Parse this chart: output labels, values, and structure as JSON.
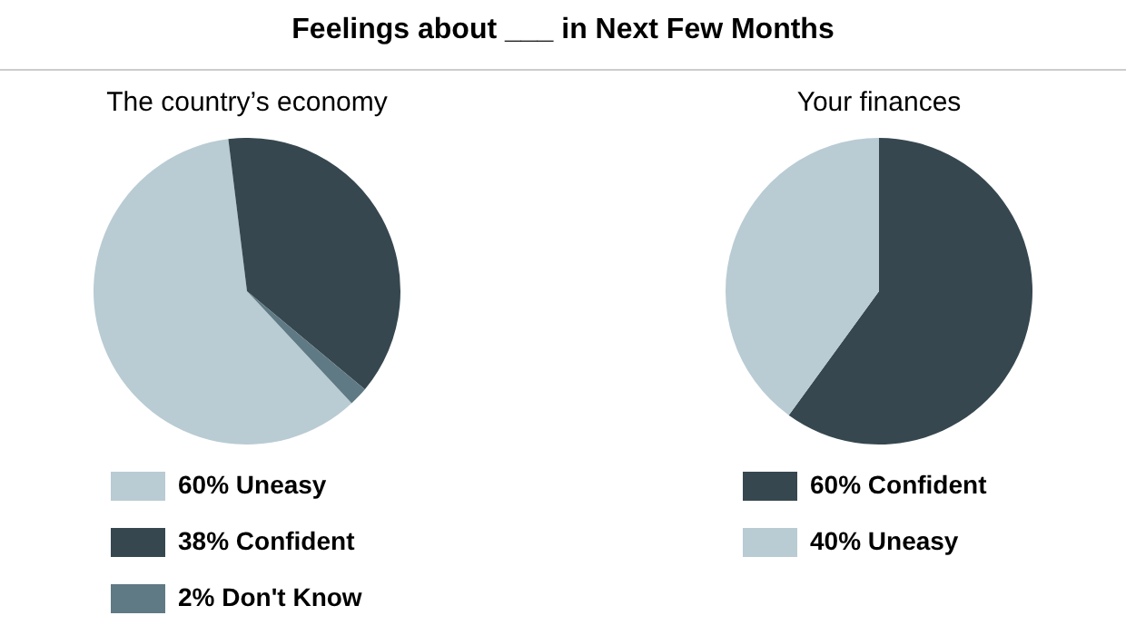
{
  "chart_data": [
    {
      "type": "pie",
      "title": "Feelings about ___ in Next Few Months",
      "subtitle": "The country’s economy",
      "categories": [
        "Uneasy",
        "Confident",
        "Don't Know"
      ],
      "values": [
        60,
        38,
        2
      ],
      "colors": [
        "#b9cbd3",
        "#36474f",
        "#5f7a84"
      ],
      "value_labels": [
        "60%",
        "38%",
        "2%"
      ],
      "legend": "bottom"
    },
    {
      "type": "pie",
      "subtitle": "Your finances",
      "categories": [
        "Confident",
        "Uneasy"
      ],
      "values": [
        60,
        40
      ],
      "colors": [
        "#36474f",
        "#b9cbd3"
      ],
      "value_labels": [
        "60%",
        "40%"
      ],
      "legend": "bottom"
    }
  ]
}
